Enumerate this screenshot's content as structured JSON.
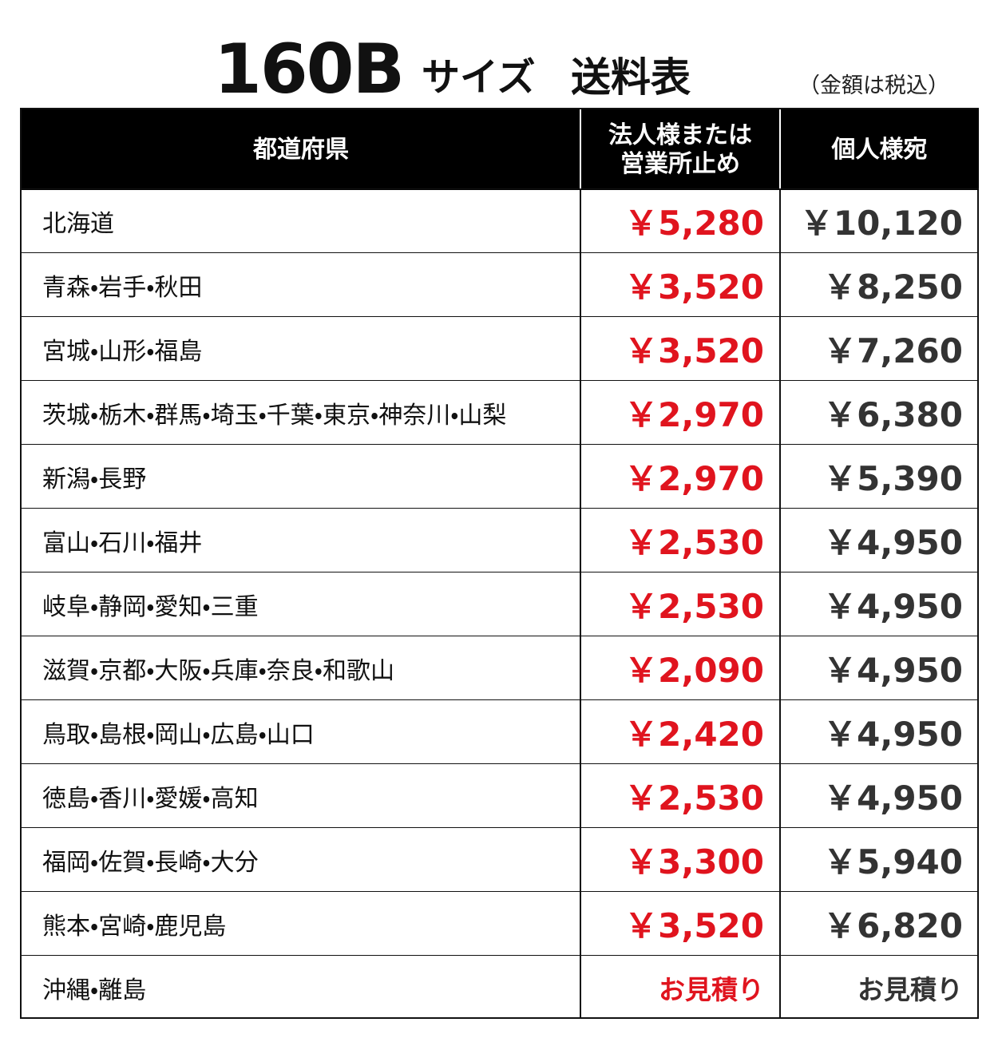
{
  "title": {
    "number": "160B",
    "size": "サイズ",
    "name": "送料表"
  },
  "note": "（金額は税込）",
  "table": {
    "headers": [
      [
        "都道府県"
      ],
      [
        "法人様または",
        "営業所止め"
      ],
      [
        "個人様宛"
      ]
    ],
    "rows": [
      [
        "北海道",
        "￥5,280",
        "￥10,120"
      ],
      [
        "青森・岩手・秋田",
        "￥3,520",
        "￥8,250"
      ],
      [
        "宮城・山形・福島",
        "￥3,520",
        "￥7,260"
      ],
      [
        "茨城・栃木・群馬・埼玉・千葉・東京・神奈川・山梨",
        "￥2,970",
        "￥6,380"
      ],
      [
        "新潟・長野",
        "￥2,970",
        "￥5,390"
      ],
      [
        "富山・石川・福井",
        "￥2,530",
        "￥4,950"
      ],
      [
        "岐阜・静岡・愛知・三重",
        "￥2,530",
        "￥4,950"
      ],
      [
        "滋賀・京都・大阪・兵庫・奈良・和歌山",
        "￥2,090",
        "￥4,950"
      ],
      [
        "鳥取・島根・岡山・広島・山口",
        "￥2,420",
        "￥4,950"
      ],
      [
        "徳島・香川・愛媛・高知",
        "￥2,530",
        "￥4,950"
      ],
      [
        "福岡・佐賀・長崎・大分",
        "￥3,300",
        "￥5,940"
      ],
      [
        "熊本・宮崎・鹿児島",
        "￥3,520",
        "￥6,820"
      ],
      [
        "沖縄・離島",
        "お見積り",
        "お見積り"
      ]
    ]
  }
}
